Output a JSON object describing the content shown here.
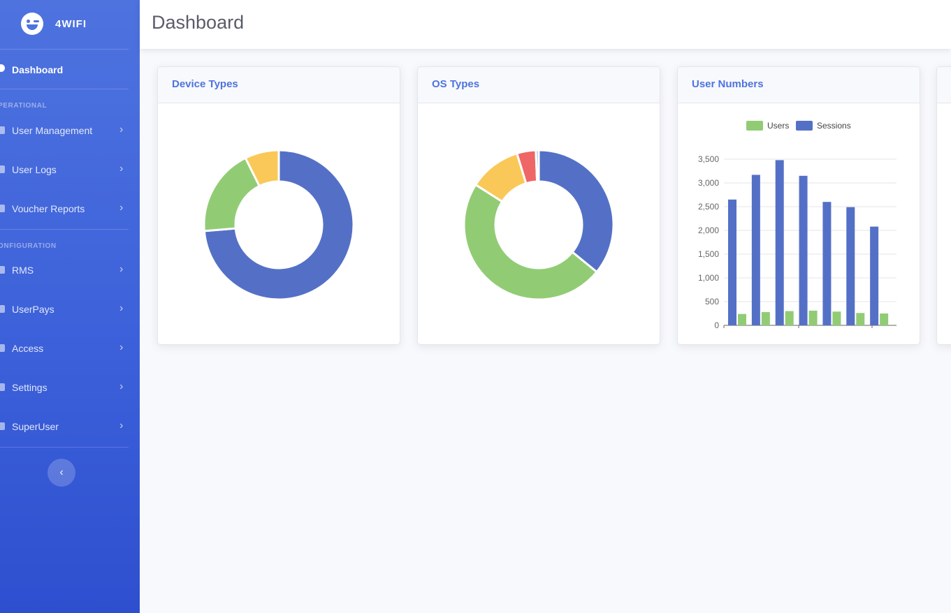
{
  "sidebar": {
    "brand": "4WIFI",
    "dashboard_label": "Dashboard",
    "section_operational": "PERATIONAL",
    "section_configuration": "ONFIGURATION",
    "items": [
      {
        "label": "User Management"
      },
      {
        "label": "User Logs"
      },
      {
        "label": "Voucher Reports"
      },
      {
        "label": "RMS"
      },
      {
        "label": "UserPays"
      },
      {
        "label": "Access"
      },
      {
        "label": "Settings"
      },
      {
        "label": "SuperUser"
      }
    ],
    "collapse_glyph": "‹"
  },
  "header": {
    "title": "Dashboard"
  },
  "cards": {
    "device_types": {
      "title": "Device Types"
    },
    "os_types": {
      "title": "OS Types"
    },
    "user_numbers": {
      "title": "User Numbers"
    }
  },
  "chart_data": [
    {
      "type": "pie",
      "title": "Device Types",
      "slices": [
        {
          "value": 70,
          "color": "#5470c6"
        },
        {
          "value": 18,
          "color": "#91cc75"
        },
        {
          "value": 7,
          "color": "#fac858"
        }
      ]
    },
    {
      "type": "pie",
      "title": "OS Types",
      "slices": [
        {
          "value": 35,
          "color": "#5470c6"
        },
        {
          "value": 47,
          "color": "#91cc75"
        },
        {
          "value": 11,
          "color": "#fac858"
        },
        {
          "value": 4,
          "color": "#ee6666"
        },
        {
          "value": 0.6,
          "color": "#73c0de"
        }
      ]
    },
    {
      "type": "bar",
      "title": "User Numbers",
      "legend_position": "top",
      "ylim": [
        0,
        3500
      ],
      "yticks": [
        "0",
        "500",
        "1,000",
        "1,500",
        "2,000",
        "2,500",
        "3,000",
        "3,500"
      ],
      "series": [
        {
          "name": "Users",
          "color": "#91cc75",
          "values": [
            240,
            280,
            300,
            310,
            290,
            260,
            250
          ]
        },
        {
          "name": "Sessions",
          "color": "#5470c6",
          "values": [
            2650,
            3170,
            3480,
            3150,
            2600,
            2490,
            2080
          ]
        }
      ]
    }
  ]
}
